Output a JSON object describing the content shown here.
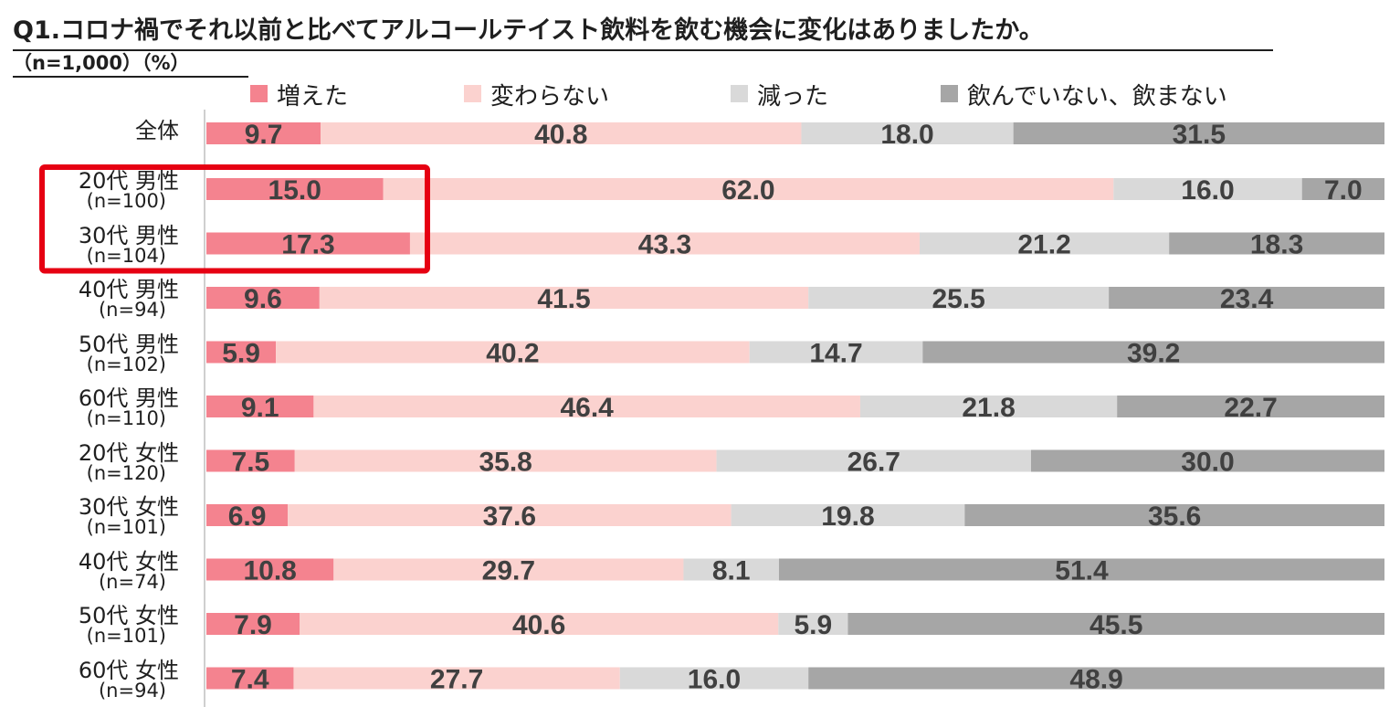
{
  "title": "Q1.コロナ禍でそれ以前と比べてアルコールテイスト飲料を飲む機会に変化はありましたか。",
  "subtitle": "（n=1,000）（%）",
  "colors": {
    "increased": "#f4838f",
    "unchanged": "#fbd2cf",
    "decreased": "#d9d9d9",
    "not_drinking": "#a6a6a6",
    "highlight": "#e60012",
    "value_label": "#404040"
  },
  "chart_data": {
    "type": "bar",
    "orientation": "horizontal",
    "stacked": "100%",
    "legend_position": "top",
    "series": [
      {
        "name": "増えた",
        "values": [
          9.7,
          15.0,
          17.3,
          9.6,
          5.9,
          9.1,
          7.5,
          6.9,
          10.8,
          7.9,
          7.4
        ]
      },
      {
        "name": "変わらない",
        "values": [
          40.8,
          62.0,
          43.3,
          41.5,
          40.2,
          46.4,
          35.8,
          37.6,
          29.7,
          40.6,
          27.7
        ]
      },
      {
        "name": "減った",
        "values": [
          18.0,
          16.0,
          21.2,
          25.5,
          14.7,
          21.8,
          26.7,
          19.8,
          8.1,
          5.9,
          16.0
        ]
      },
      {
        "name": "飲んでいない、飲まない",
        "values": [
          31.5,
          7.0,
          18.3,
          23.4,
          39.2,
          22.7,
          30.0,
          35.6,
          51.4,
          45.5,
          48.9
        ]
      }
    ],
    "categories": [
      {
        "label": "全体",
        "n": ""
      },
      {
        "label": "20代 男性",
        "n": "(n=100)"
      },
      {
        "label": "30代 男性",
        "n": "(n=104)"
      },
      {
        "label": "40代 男性",
        "n": "(n=94)"
      },
      {
        "label": "50代 男性",
        "n": "(n=102)"
      },
      {
        "label": "60代 男性",
        "n": "(n=110)"
      },
      {
        "label": "20代 女性",
        "n": "(n=120)"
      },
      {
        "label": "30代 女性",
        "n": "(n=101)"
      },
      {
        "label": "40代 女性",
        "n": "(n=74)"
      },
      {
        "label": "50代 女性",
        "n": "(n=101)"
      },
      {
        "label": "60代 女性",
        "n": "(n=94)"
      }
    ],
    "highlighted_categories": [
      "20代 男性",
      "30代 男性"
    ]
  }
}
